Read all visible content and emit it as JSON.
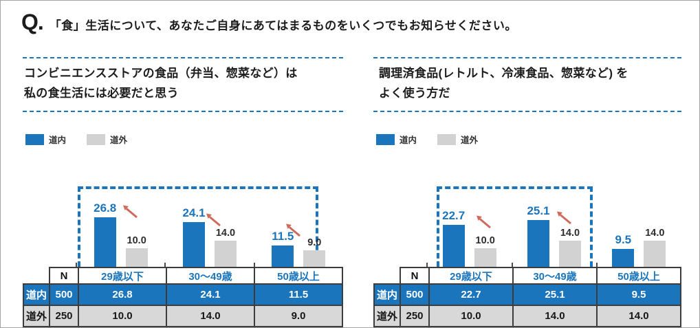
{
  "title": {
    "q": "Q.",
    "text": "「食」生活について、あなたご自身にあてはまるものをいくつでもお知らせください。"
  },
  "legend": {
    "items": [
      {
        "label": "道内",
        "color": "#1b75bc"
      },
      {
        "label": "道外",
        "color": "#d2d2d2"
      }
    ]
  },
  "colors": {
    "dounai_blue": "#1b75bc",
    "dougai_gray": "#d2d2d2",
    "table_gray_row": "#d8d8d8",
    "highlight_dash_blue": "#1b75bc",
    "arrow_salmon": "#cf6a5b"
  },
  "panels": [
    {
      "question_lines": [
        "コンビニエンスストアの食品（弁当、惣菜など）は",
        "私の食生活には必要だと思う"
      ],
      "groups": [
        {
          "label": "29歳以下",
          "dounai": "26.8",
          "dougai": "10.0"
        },
        {
          "label": "30〜49歳",
          "dounai": "24.1",
          "dougai": "14.0"
        },
        {
          "label": "50歳以上",
          "dounai": "11.5",
          "dougai": "9.0"
        }
      ],
      "table": {
        "n_header": "N",
        "col_headers": [
          "29歳以下",
          "30〜49歳",
          "50歳以上"
        ],
        "rows": [
          {
            "label": "道内",
            "n": "500",
            "values": [
              "26.8",
              "24.1",
              "11.5"
            ]
          },
          {
            "label": "道外",
            "n": "250",
            "values": [
              "10.0",
              "14.0",
              "9.0"
            ]
          }
        ]
      }
    },
    {
      "question_lines": [
        "調理済食品(レトルト、冷凍食品、惣菜など) を",
        "よく使う方だ"
      ],
      "groups": [
        {
          "label": "29歳以下",
          "dounai": "22.7",
          "dougai": "10.0"
        },
        {
          "label": "30〜49歳",
          "dounai": "25.1",
          "dougai": "14.0"
        },
        {
          "label": "50歳以上",
          "dounai": "9.5",
          "dougai": "14.0"
        }
      ],
      "table": {
        "n_header": "N",
        "col_headers": [
          "29歳以下",
          "30〜49歳",
          "50歳以上"
        ],
        "rows": [
          {
            "label": "道内",
            "n": "500",
            "values": [
              "22.7",
              "25.1",
              "9.5"
            ]
          },
          {
            "label": "道外",
            "n": "250",
            "values": [
              "10.0",
              "14.0",
              "14.0"
            ]
          }
        ]
      }
    }
  ],
  "chart_data": [
    {
      "type": "bar",
      "title": "コンビニエンスストアの食品（弁当、惣菜など）は私の食生活には必要だと思う",
      "categories": [
        "29歳以下",
        "30〜49歳",
        "50歳以上"
      ],
      "series": [
        {
          "name": "道内",
          "n": 500,
          "values": [
            26.8,
            24.1,
            11.5
          ]
        },
        {
          "name": "道外",
          "n": 250,
          "values": [
            10.0,
            14.0,
            9.0
          ]
        }
      ],
      "legend_position": "top-left",
      "highlighted_categories": [
        "29歳以下",
        "30〜49歳",
        "50歳以上"
      ],
      "arrow_annotated_categories": [
        "29歳以下",
        "30〜49歳",
        "50歳以上"
      ]
    },
    {
      "type": "bar",
      "title": "調理済食品(レトルト、冷凍食品、惣菜など) をよく使う方だ",
      "categories": [
        "29歳以下",
        "30〜49歳",
        "50歳以上"
      ],
      "series": [
        {
          "name": "道内",
          "n": 500,
          "values": [
            22.7,
            25.1,
            9.5
          ]
        },
        {
          "name": "道外",
          "n": 250,
          "values": [
            10.0,
            14.0,
            14.0
          ]
        }
      ],
      "legend_position": "top-left",
      "highlighted_categories": [
        "29歳以下",
        "30〜49歳"
      ],
      "arrow_annotated_categories": [
        "29歳以下",
        "30〜49歳"
      ]
    }
  ]
}
